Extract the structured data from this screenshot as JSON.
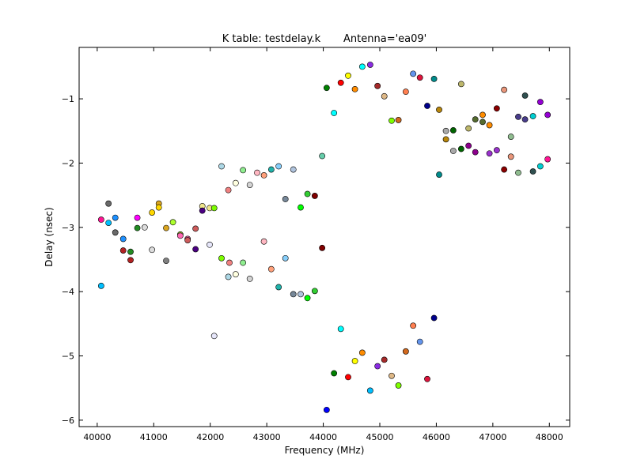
{
  "chart_data": {
    "type": "scatter",
    "title": "K table: testdelay.k       Antenna='ea09'",
    "xlabel": "Frequency (MHz)",
    "ylabel": "Delay (nsec)",
    "xlim": [
      39680,
      48360
    ],
    "ylim": [
      -6.1,
      -0.2
    ],
    "xticks": [
      40000,
      41000,
      42000,
      43000,
      44000,
      45000,
      46000,
      47000,
      48000
    ],
    "yticks": [
      -1,
      -2,
      -3,
      -4,
      -5,
      -6
    ],
    "grid": false,
    "points": [
      [
        40070,
        -2.88,
        "#ff1493"
      ],
      [
        40200,
        -2.63,
        "#696969"
      ],
      [
        40320,
        -2.85,
        "#1e90ff"
      ],
      [
        40200,
        -2.93,
        "#00bfff"
      ],
      [
        40320,
        -3.08,
        "#696969"
      ],
      [
        40460,
        -3.18,
        "#1e90ff"
      ],
      [
        40460,
        -3.36,
        "#b22222"
      ],
      [
        40590,
        -3.38,
        "#228b22"
      ],
      [
        40590,
        -3.51,
        "#b22222"
      ],
      [
        40070,
        -3.91,
        "#00bfff"
      ],
      [
        40710,
        -2.85,
        "#ff00ff"
      ],
      [
        40710,
        -3.01,
        "#228b22"
      ],
      [
        40840,
        -3.0,
        "#dcdcdc"
      ],
      [
        40970,
        -2.77,
        "#ffd700"
      ],
      [
        41090,
        -2.63,
        "#daa520"
      ],
      [
        41090,
        -2.69,
        "#ffd700"
      ],
      [
        40970,
        -3.35,
        "#dcdcdc"
      ],
      [
        41220,
        -3.01,
        "#daa520"
      ],
      [
        41340,
        -2.92,
        "#adff2f"
      ],
      [
        41220,
        -3.52,
        "#808080"
      ],
      [
        41470,
        -3.11,
        "#9acd32"
      ],
      [
        41470,
        -3.13,
        "#ff69b4"
      ],
      [
        41600,
        -3.18,
        "#ff69b4"
      ],
      [
        41600,
        -3.2,
        "#cd5c5c"
      ],
      [
        41740,
        -3.02,
        "#cd5c5c"
      ],
      [
        41740,
        -3.34,
        "#4b0082"
      ],
      [
        41860,
        -2.67,
        "#f0e68c"
      ],
      [
        41860,
        -2.74,
        "#4b0082"
      ],
      [
        41990,
        -2.7,
        "#f0e68c"
      ],
      [
        42070,
        -2.7,
        "#7cfc00"
      ],
      [
        41990,
        -3.27,
        "#e6e6fa"
      ],
      [
        42200,
        -3.48,
        "#7cfc00"
      ],
      [
        42340,
        -3.55,
        "#f08080"
      ],
      [
        42320,
        -3.77,
        "#add8e6"
      ],
      [
        42200,
        -2.05,
        "#add8e6"
      ],
      [
        42320,
        -2.42,
        "#f08080"
      ],
      [
        42450,
        -2.31,
        "#ffffe0"
      ],
      [
        42580,
        -2.11,
        "#90ee90"
      ],
      [
        42700,
        -2.34,
        "#d3d3d3"
      ],
      [
        42830,
        -2.15,
        "#ffb6c1"
      ],
      [
        42950,
        -2.19,
        "#ffa07a"
      ],
      [
        43080,
        -2.1,
        "#20b2aa"
      ],
      [
        43210,
        -2.05,
        "#87cefa"
      ],
      [
        43330,
        -2.56,
        "#778899"
      ],
      [
        43470,
        -2.1,
        "#b0c4de"
      ],
      [
        43600,
        -2.69,
        "#00ff00"
      ],
      [
        43720,
        -2.48,
        "#32cd32"
      ],
      [
        43850,
        -2.51,
        "#800000"
      ],
      [
        43980,
        -1.89,
        "#66cdaa"
      ],
      [
        42450,
        -3.73,
        "#ffffe0"
      ],
      [
        42580,
        -3.55,
        "#90ee90"
      ],
      [
        42700,
        -3.8,
        "#d3d3d3"
      ],
      [
        42950,
        -3.22,
        "#ffb6c1"
      ],
      [
        43080,
        -3.65,
        "#ffa07a"
      ],
      [
        43210,
        -3.93,
        "#20b2aa"
      ],
      [
        43330,
        -3.48,
        "#87cefa"
      ],
      [
        43470,
        -4.04,
        "#778899"
      ],
      [
        43600,
        -4.04,
        "#b0c4de"
      ],
      [
        43720,
        -4.1,
        "#00ff00"
      ],
      [
        43850,
        -3.99,
        "#32cd32"
      ],
      [
        43980,
        -3.32,
        "#800000"
      ],
      [
        42070,
        -4.69,
        "#e6e6fa"
      ],
      [
        44060,
        -0.83,
        "#008000"
      ],
      [
        44190,
        -1.22,
        "#00ffff"
      ],
      [
        44310,
        -0.75,
        "#ff0000"
      ],
      [
        44440,
        -0.64,
        "#ffff00"
      ],
      [
        44560,
        -0.85,
        "#ff8c00"
      ],
      [
        44690,
        -0.5,
        "#00ffff"
      ],
      [
        44830,
        -0.47,
        "#8a2be2"
      ],
      [
        44960,
        -0.8,
        "#a52a2a"
      ],
      [
        45080,
        -0.96,
        "#deb887"
      ],
      [
        45210,
        -1.34,
        "#7fff00"
      ],
      [
        45330,
        -1.33,
        "#d2691e"
      ],
      [
        45460,
        -0.89,
        "#ff7f50"
      ],
      [
        45590,
        -0.61,
        "#6495ed"
      ],
      [
        45710,
        -0.67,
        "#dc143c"
      ],
      [
        45960,
        -0.69,
        "#008b8b"
      ],
      [
        45840,
        -1.11,
        "#00008b"
      ],
      [
        46050,
        -1.17,
        "#b8860b"
      ],
      [
        46440,
        -0.77,
        "#bdb76b"
      ],
      [
        46170,
        -1.5,
        "#a9a9a9"
      ],
      [
        46300,
        -1.49,
        "#006400"
      ],
      [
        46170,
        -1.63,
        "#b8860b"
      ],
      [
        46300,
        -1.81,
        "#a9a9a9"
      ],
      [
        46440,
        -1.78,
        "#006400"
      ],
      [
        46570,
        -1.73,
        "#8b008b"
      ],
      [
        46690,
        -1.83,
        "#8b008b"
      ],
      [
        46570,
        -1.46,
        "#bdb76b"
      ],
      [
        46690,
        -1.32,
        "#556b2f"
      ],
      [
        46820,
        -1.25,
        "#ff8c00"
      ],
      [
        46820,
        -1.36,
        "#556b2f"
      ],
      [
        46940,
        -1.41,
        "#ff8c00"
      ],
      [
        47070,
        -1.15,
        "#8b0000"
      ],
      [
        46940,
        -1.85,
        "#9932cc"
      ],
      [
        47070,
        -1.8,
        "#9932cc"
      ],
      [
        47200,
        -0.86,
        "#e9967a"
      ],
      [
        47320,
        -1.59,
        "#8fbc8f"
      ],
      [
        47320,
        -1.9,
        "#e9967a"
      ],
      [
        47200,
        -2.1,
        "#8b0000"
      ],
      [
        47450,
        -2.15,
        "#8fbc8f"
      ],
      [
        47450,
        -1.28,
        "#483d8b"
      ],
      [
        47570,
        -1.32,
        "#483d8b"
      ],
      [
        47570,
        -0.95,
        "#2f4f4f"
      ],
      [
        47710,
        -1.27,
        "#00ced1"
      ],
      [
        47840,
        -1.05,
        "#9400d3"
      ],
      [
        47970,
        -1.25,
        "#9400d3"
      ],
      [
        47840,
        -2.05,
        "#00ced1"
      ],
      [
        47970,
        -1.94,
        "#ff1493"
      ],
      [
        47710,
        -2.13,
        "#2f4f4f"
      ],
      [
        46050,
        -2.18,
        "#008b8b"
      ],
      [
        44310,
        -4.58,
        "#00ffff"
      ],
      [
        44190,
        -5.27,
        "#008000"
      ],
      [
        44440,
        -5.33,
        "#ff0000"
      ],
      [
        44560,
        -5.08,
        "#ffff00"
      ],
      [
        44690,
        -4.95,
        "#ff8c00"
      ],
      [
        44830,
        -5.54,
        "#00bfff"
      ],
      [
        44960,
        -5.16,
        "#8a2be2"
      ],
      [
        45080,
        -5.06,
        "#a52a2a"
      ],
      [
        45210,
        -5.31,
        "#deb887"
      ],
      [
        45330,
        -5.46,
        "#7fff00"
      ],
      [
        45460,
        -4.93,
        "#d2691e"
      ],
      [
        45590,
        -4.53,
        "#ff7f50"
      ],
      [
        45710,
        -4.78,
        "#6495ed"
      ],
      [
        45840,
        -5.36,
        "#dc143c"
      ],
      [
        45960,
        -4.41,
        "#00008b"
      ],
      [
        44060,
        -5.84,
        "#0000ff"
      ]
    ]
  }
}
